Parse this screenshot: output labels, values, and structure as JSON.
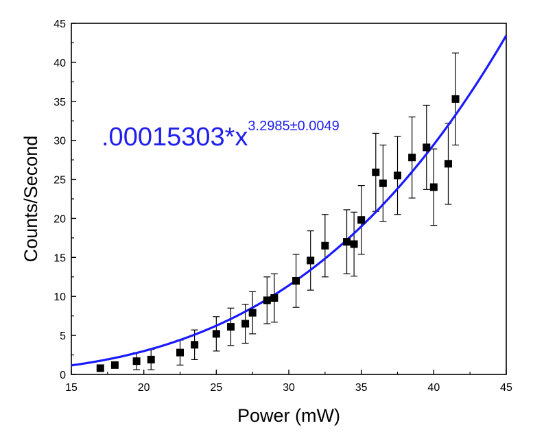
{
  "chart_data": {
    "type": "scatter",
    "title": "",
    "xlabel": "Power (mW)",
    "ylabel": "Counts/Second",
    "xlim": [
      15,
      45
    ],
    "ylim": [
      0,
      45
    ],
    "xticks": [
      "15",
      "20",
      "25",
      "30",
      "35",
      "40",
      "45"
    ],
    "yticks": [
      "0",
      "5",
      "10",
      "15",
      "20",
      "25",
      "30",
      "35",
      "40",
      "45"
    ],
    "grid": false,
    "series": [
      {
        "name": "data",
        "marker": "square",
        "color": "#000000",
        "points": [
          {
            "x": 17.0,
            "y": 0.8,
            "err": 0.0
          },
          {
            "x": 18.0,
            "y": 1.2,
            "err": 0.0
          },
          {
            "x": 19.5,
            "y": 1.7,
            "err": 1.1
          },
          {
            "x": 20.5,
            "y": 1.9,
            "err": 1.3
          },
          {
            "x": 22.5,
            "y": 2.8,
            "err": 1.6
          },
          {
            "x": 23.5,
            "y": 3.8,
            "err": 1.9
          },
          {
            "x": 25.0,
            "y": 5.2,
            "err": 2.2
          },
          {
            "x": 26.0,
            "y": 6.1,
            "err": 2.4
          },
          {
            "x": 27.0,
            "y": 6.5,
            "err": 2.5
          },
          {
            "x": 27.5,
            "y": 7.9,
            "err": 2.7
          },
          {
            "x": 28.5,
            "y": 9.5,
            "err": 3.0
          },
          {
            "x": 29.0,
            "y": 9.8,
            "err": 3.1
          },
          {
            "x": 30.5,
            "y": 12.0,
            "err": 3.4
          },
          {
            "x": 31.5,
            "y": 14.6,
            "err": 3.8
          },
          {
            "x": 32.5,
            "y": 16.5,
            "err": 4.0
          },
          {
            "x": 34.0,
            "y": 17.0,
            "err": 4.1
          },
          {
            "x": 34.5,
            "y": 16.7,
            "err": 4.1
          },
          {
            "x": 35.0,
            "y": 19.8,
            "err": 4.4
          },
          {
            "x": 36.0,
            "y": 25.9,
            "err": 5.0
          },
          {
            "x": 36.5,
            "y": 24.5,
            "err": 4.9
          },
          {
            "x": 37.5,
            "y": 25.5,
            "err": 5.0
          },
          {
            "x": 38.5,
            "y": 27.8,
            "err": 5.2
          },
          {
            "x": 39.5,
            "y": 29.1,
            "err": 5.4
          },
          {
            "x": 40.0,
            "y": 24.0,
            "err": 4.9
          },
          {
            "x": 41.0,
            "y": 27.0,
            "err": 5.2
          },
          {
            "x": 41.5,
            "y": 35.3,
            "err": 5.9
          }
        ]
      },
      {
        "name": "fit",
        "kind": "power-law",
        "color": "#1a1aff",
        "coefficient": 0.00015303,
        "exponent": 3.2985
      }
    ],
    "annotation": {
      "base": ".00015303*x",
      "superscript": "3.2985±0.0049",
      "color": "#2020ee"
    }
  }
}
